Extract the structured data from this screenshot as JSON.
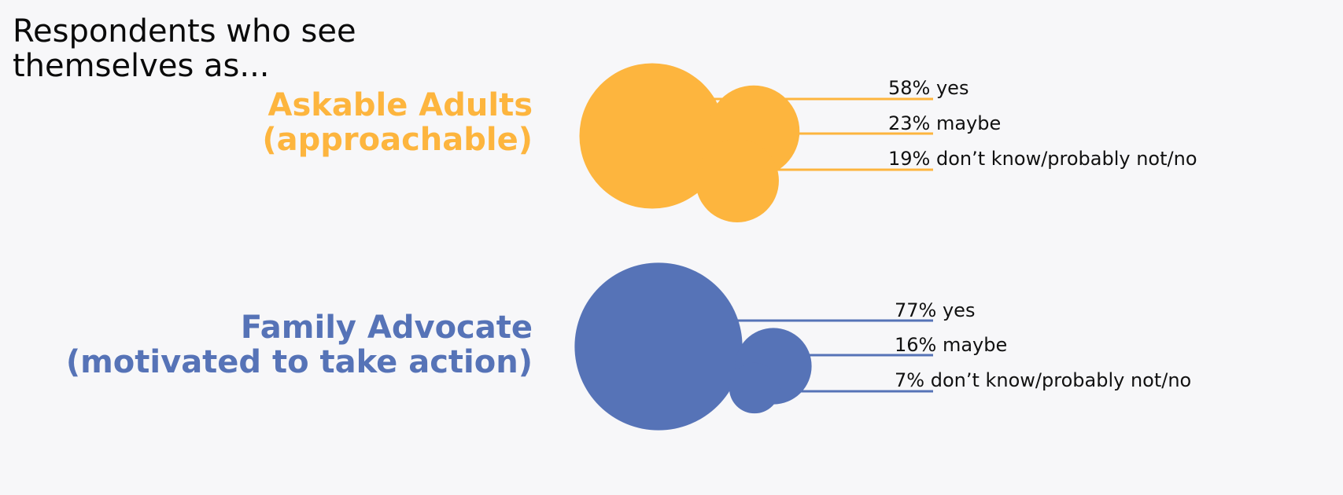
{
  "chart_data": {
    "type": "bubble",
    "title_lines": [
      "Respondents who see",
      "themselves as..."
    ],
    "groups": [
      {
        "label_lines": [
          "Askable Adults",
          "(approachable)"
        ],
        "color": "#fdb53e",
        "items": [
          {
            "value": 58,
            "label": "58% yes"
          },
          {
            "value": 23,
            "label": "23% maybe"
          },
          {
            "value": 19,
            "label": "19% don’t know/probably not/no"
          }
        ]
      },
      {
        "label_lines": [
          "Family Advocate",
          "(motivated to take action)"
        ],
        "color": "#5673b7",
        "items": [
          {
            "value": 77,
            "label": "77% yes"
          },
          {
            "value": 16,
            "label": "16% maybe"
          },
          {
            "value": 7,
            "label": "7% don’t know/probably not/no"
          }
        ]
      }
    ]
  }
}
